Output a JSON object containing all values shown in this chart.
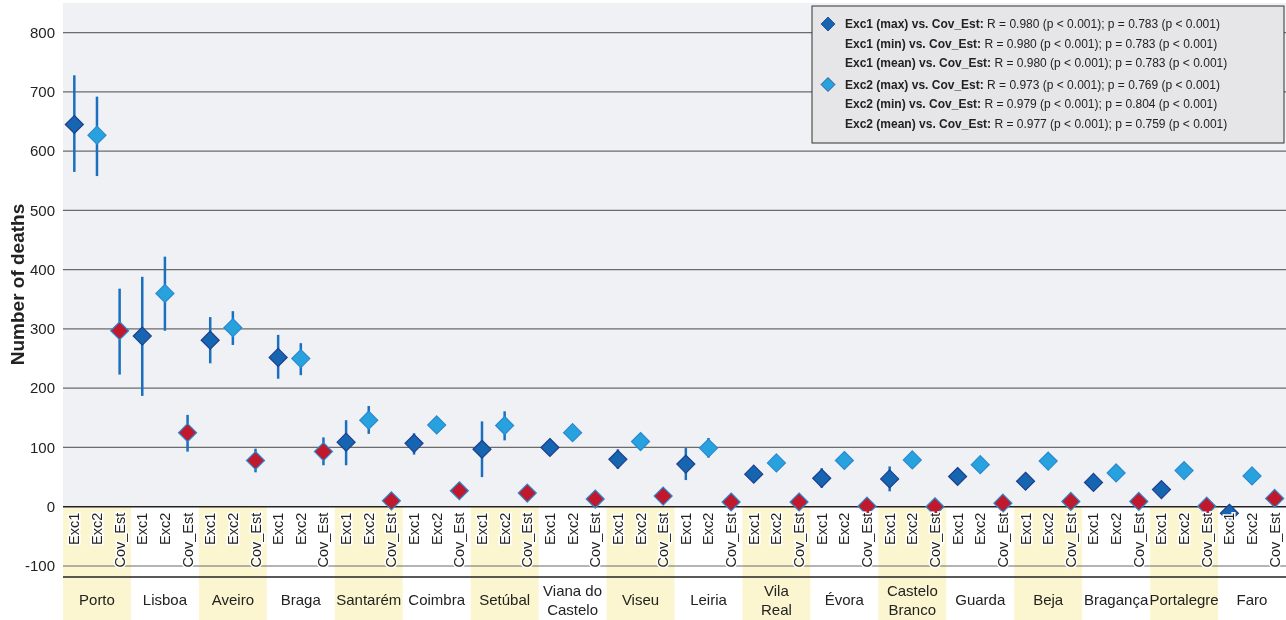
{
  "chart_data": {
    "type": "scatter",
    "ylabel": "Number of deaths",
    "categories": [
      "Exc1",
      "Exc2",
      "Cov_Est",
      "Exc1",
      "Exc2",
      "Cov_Est",
      "Exc1",
      "Exc2",
      "Cov_Est",
      "Exc1",
      "Exc2",
      "Cov_Est",
      "Exc1",
      "Exc2",
      "Cov_Est",
      "Exc1",
      "Exc2",
      "Cov_Est",
      "Exc1",
      "Exc2",
      "Cov_Est",
      "Exc1",
      "Exc2",
      "Cov_Est",
      "Exc1",
      "Exc2",
      "Cov_Est",
      "Exc1",
      "Exc2",
      "Cov_Est",
      "Exc1",
      "Exc2",
      "Cov_Est",
      "Exc1",
      "Exc2",
      "Cov_Est",
      "Exc1",
      "Exc2",
      "Cov_Est",
      "Exc1",
      "Exc2",
      "Cov_Est",
      "Exc1",
      "Exc2",
      "Cov_Est",
      "Exc1",
      "Exc2",
      "Cov_Est",
      "Exc1",
      "Exc2",
      "Cov_Est",
      "Exc1",
      "Exc2",
      "Cov_Est"
    ],
    "annotations": [
      "Porto",
      "Lisboa",
      "Aveiro",
      "Braga",
      "Santarém",
      "Coimbra",
      "Setúbal",
      "Viana do Castelo",
      "Viseu",
      "Leiria",
      "Vila Real",
      "Évora",
      "Castelo Branco",
      "Guarda",
      "Beja",
      "Bragança",
      "Portalegre",
      "Faro"
    ],
    "series": [
      {
        "name": "Exc1 (max) vs. Cov_Est: R = 0.980 (p < 0.001); p = 0.783 (p < 0.001)\nExc1 (min) vs. Cov_Est: R = 0.980 (p < 0.001); p = 0.783 (p < 0.001)\nExc1 (mean) vs. Cov_Est: R = 0.980 (p < 0.001); p = 0.783 (p < 0.001)",
        "color": "#1565b0",
        "values": [
          645,
          null,
          null,
          288,
          null,
          null,
          281,
          null,
          null,
          252,
          null,
          null,
          109,
          null,
          null,
          107,
          null,
          null,
          97,
          null,
          null,
          100,
          null,
          null,
          80,
          null,
          null,
          72,
          null,
          null,
          55,
          null,
          null,
          48,
          null,
          null,
          47,
          null,
          null,
          51,
          null,
          null,
          43,
          null,
          null,
          41,
          null,
          null,
          29,
          null,
          null,
          -11,
          null,
          null
        ],
        "errors": [
          [
            565,
            728
          ],
          null,
          null,
          [
            187,
            388
          ],
          null,
          null,
          [
            242,
            320
          ],
          null,
          null,
          [
            216,
            290
          ],
          null,
          null,
          [
            70,
            146
          ],
          null,
          null,
          [
            88,
            124
          ],
          null,
          null,
          [
            50,
            144
          ],
          null,
          null,
          null,
          null,
          null,
          [
            64,
            97
          ],
          null,
          null,
          [
            45,
            99
          ],
          null,
          null,
          null,
          null,
          null,
          [
            32,
            65
          ],
          null,
          null,
          [
            26,
            68
          ],
          null,
          null,
          null,
          null,
          null,
          null,
          null,
          null,
          [
            28,
            53
          ],
          null,
          null,
          null,
          null,
          null,
          [
            -20,
            2
          ],
          null,
          null
        ]
      },
      {
        "name": "Exc2 (max) vs. Cov_Est: R = 0.973 (p < 0.001); p = 0.769 (p < 0.001)\nExc2 (min) vs. Cov_Est: R = 0.979 (p < 0.001); p = 0.804 (p < 0.001)\nExc2 (mean) vs. Cov_Est: R = 0.977 (p < 0.001); p = 0.759 (p < 0.001)",
        "color": "#27a2de",
        "values": [
          null,
          627,
          null,
          null,
          360,
          null,
          null,
          302,
          null,
          null,
          250,
          null,
          null,
          146,
          null,
          null,
          138,
          null,
          null,
          137,
          null,
          null,
          125,
          null,
          null,
          110,
          null,
          null,
          99,
          null,
          null,
          74,
          null,
          null,
          78,
          null,
          null,
          79,
          null,
          null,
          71,
          null,
          null,
          77,
          null,
          null,
          57,
          null,
          null,
          61,
          null,
          null,
          52,
          null
        ],
        "errors": [
          null,
          [
            558,
            692
          ],
          null,
          null,
          [
            297,
            422
          ],
          null,
          null,
          [
            273,
            330
          ],
          null,
          null,
          [
            222,
            276
          ],
          null,
          null,
          [
            123,
            170
          ],
          null,
          null,
          null,
          null,
          null,
          [
            112,
            161
          ],
          null,
          null,
          null,
          null,
          null,
          null,
          null,
          null,
          [
            83,
            116
          ],
          null,
          null,
          null,
          null,
          null,
          null,
          null,
          null,
          null,
          null,
          null,
          null,
          null,
          null,
          null,
          null,
          null,
          null,
          null,
          null,
          null,
          null,
          null,
          null,
          null
        ]
      },
      {
        "color": "#c0182c",
        "values": [
          null,
          null,
          297,
          null,
          null,
          125,
          null,
          null,
          78,
          null,
          null,
          93,
          null,
          null,
          10,
          null,
          null,
          27,
          null,
          null,
          23,
          null,
          null,
          13,
          null,
          null,
          18,
          null,
          null,
          8,
          null,
          null,
          8,
          null,
          null,
          1,
          null,
          null,
          0,
          null,
          null,
          6,
          null,
          null,
          9,
          null,
          null,
          9,
          null,
          null,
          1,
          null,
          null,
          14
        ],
        "errors": [
          null,
          null,
          [
            223,
            368
          ],
          null,
          null,
          [
            93,
            155
          ],
          null,
          null,
          [
            58,
            98
          ],
          null,
          null,
          [
            70,
            117
          ],
          null,
          null,
          null,
          null,
          null,
          null,
          null,
          null,
          null,
          null,
          null,
          null,
          null,
          null,
          null,
          null,
          null,
          null,
          null,
          null,
          null,
          null,
          null,
          null,
          null,
          null,
          null,
          null,
          null,
          null,
          null,
          null,
          null,
          null,
          null,
          null,
          null,
          null,
          null,
          null,
          null,
          null
        ]
      }
    ],
    "ylim": [
      -100,
      850
    ],
    "bands": [
      {
        "axis": "y",
        "from": 0,
        "to": 850,
        "color": "#f0f1f4"
      }
    ],
    "yticks": [
      -100,
      0,
      100,
      200,
      300,
      400,
      500,
      600,
      700,
      800
    ],
    "grid": "y",
    "legend": "top right",
    "marker": "diamond"
  }
}
